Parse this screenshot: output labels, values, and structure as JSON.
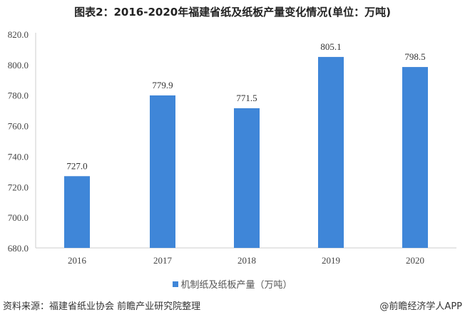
{
  "chart_data": {
    "type": "bar",
    "title": "图表2：2016-2020年福建省纸及纸板产量变化情况(单位：万吨)",
    "categories": [
      "2016",
      "2017",
      "2018",
      "2019",
      "2020"
    ],
    "series": [
      {
        "name": "机制纸及纸板产量（万吨）",
        "values": [
          727.0,
          779.9,
          771.5,
          805.1,
          798.5
        ]
      }
    ],
    "ylim": [
      680,
      820
    ],
    "yticks": [
      "680.0",
      "700.0",
      "720.0",
      "740.0",
      "760.0",
      "780.0",
      "800.0",
      "820.0"
    ],
    "grid": false,
    "legend": "bottom",
    "color": "#3f86d8"
  },
  "footer": {
    "source": "资料来源：福建省纸业协会 前瞻产业研究院整理",
    "credit": "@前瞻经济学人APP"
  }
}
